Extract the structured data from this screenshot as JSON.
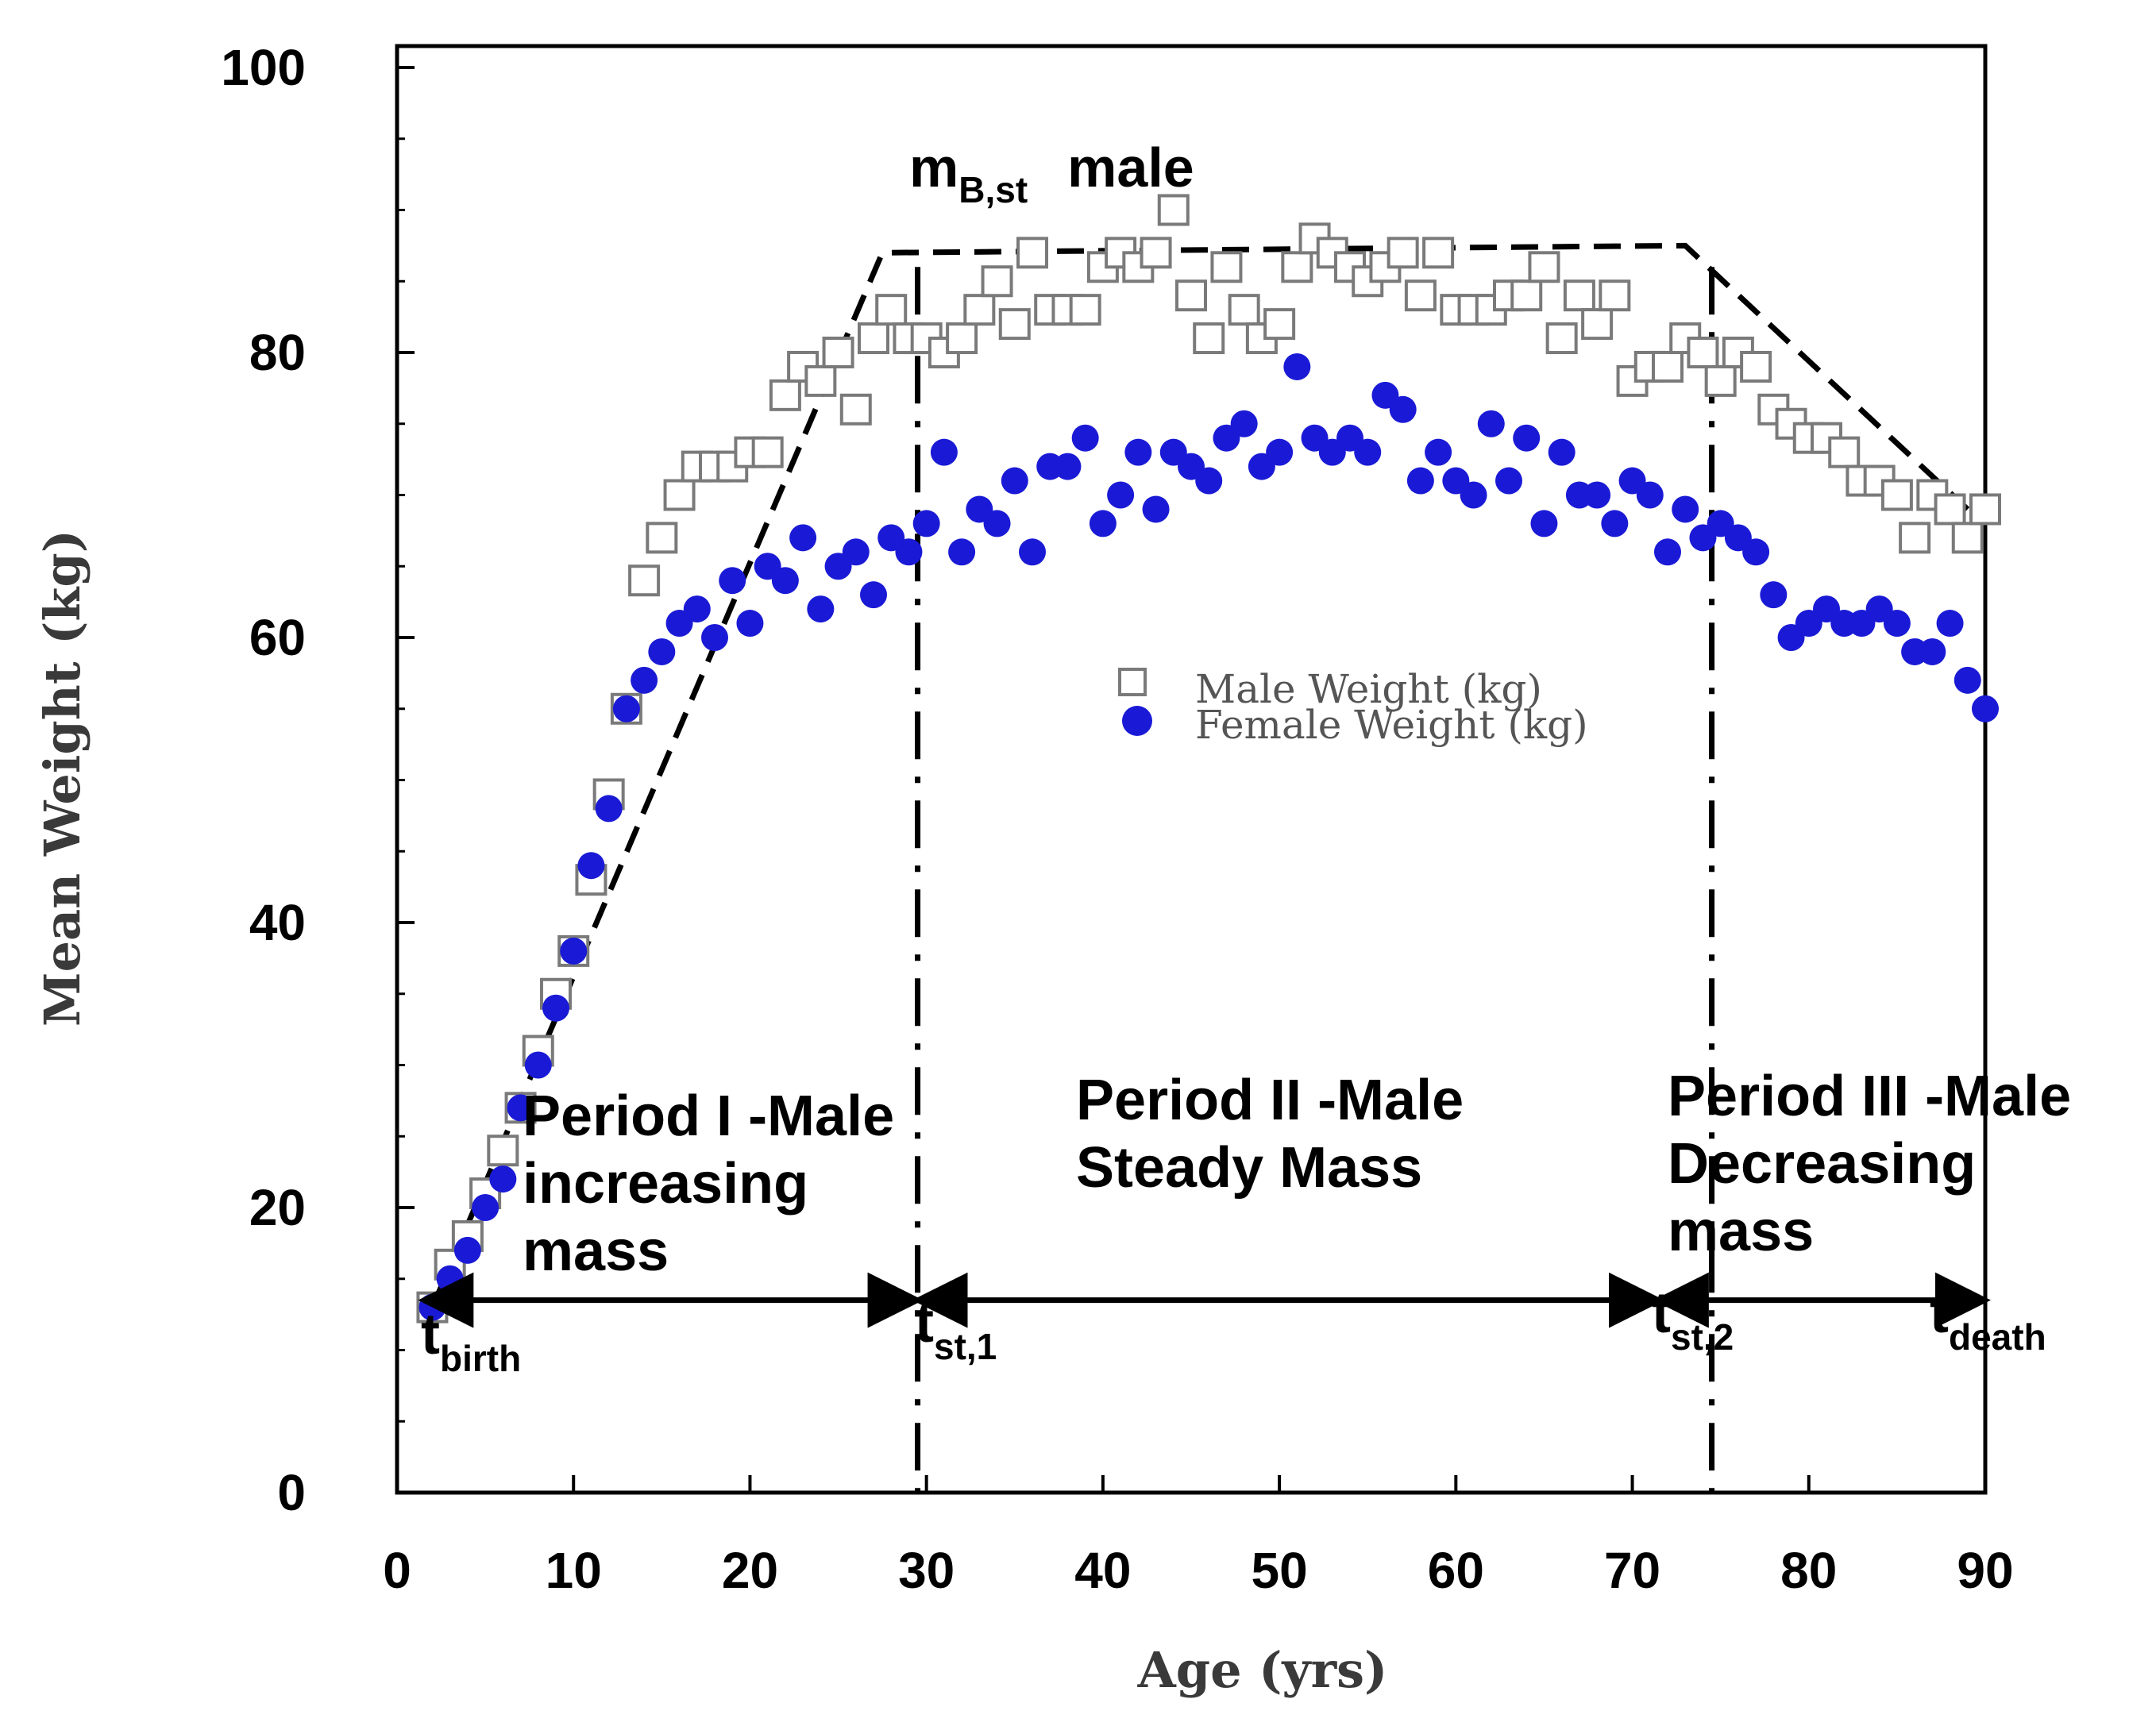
{
  "chart_data": {
    "type": "scatter",
    "title": "",
    "xlabel": "Age (yrs)",
    "ylabel": "Mean Weight (kg)",
    "xlim": [
      0,
      90
    ],
    "ylim": [
      0,
      100
    ],
    "x_ticks": [
      "0",
      "10",
      "20",
      "30",
      "40",
      "50",
      "60",
      "70",
      "80",
      "90"
    ],
    "y_ticks": [
      "0",
      "20",
      "40",
      "60",
      "80",
      "100"
    ],
    "legend": {
      "position": "center",
      "entries": [
        "Male Weight (kg)",
        "Female Weight (kg)"
      ]
    },
    "series": [
      {
        "name": "Male Weight (kg)",
        "marker": "open-square",
        "color": "#7a7a7a",
        "points": [
          [
            2,
            13
          ],
          [
            3,
            16
          ],
          [
            4,
            18
          ],
          [
            5,
            21
          ],
          [
            6,
            24
          ],
          [
            7,
            27
          ],
          [
            8,
            31
          ],
          [
            9,
            35
          ],
          [
            10,
            38
          ],
          [
            11,
            43
          ],
          [
            12,
            49
          ],
          [
            13,
            55
          ],
          [
            14,
            64
          ],
          [
            15,
            67
          ],
          [
            16,
            70
          ],
          [
            17,
            72
          ],
          [
            18,
            72
          ],
          [
            19,
            72
          ],
          [
            20,
            73
          ],
          [
            21,
            73
          ],
          [
            22,
            77
          ],
          [
            23,
            79
          ],
          [
            24,
            78
          ],
          [
            25,
            80
          ],
          [
            26,
            76
          ],
          [
            27,
            81
          ],
          [
            28,
            83
          ],
          [
            29,
            81
          ],
          [
            30,
            81
          ],
          [
            31,
            80
          ],
          [
            32,
            81
          ],
          [
            33,
            83
          ],
          [
            34,
            85
          ],
          [
            35,
            82
          ],
          [
            36,
            87
          ],
          [
            37,
            83
          ],
          [
            38,
            83
          ],
          [
            39,
            83
          ],
          [
            40,
            86
          ],
          [
            41,
            87
          ],
          [
            42,
            86
          ],
          [
            43,
            87
          ],
          [
            44,
            90
          ],
          [
            45,
            84
          ],
          [
            46,
            81
          ],
          [
            47,
            86
          ],
          [
            48,
            83
          ],
          [
            49,
            81
          ],
          [
            50,
            82
          ],
          [
            51,
            86
          ],
          [
            52,
            88
          ],
          [
            53,
            87
          ],
          [
            54,
            86
          ],
          [
            55,
            85
          ],
          [
            56,
            86
          ],
          [
            57,
            87
          ],
          [
            58,
            84
          ],
          [
            59,
            87
          ],
          [
            60,
            83
          ],
          [
            61,
            83
          ],
          [
            62,
            83
          ],
          [
            63,
            84
          ],
          [
            64,
            84
          ],
          [
            65,
            86
          ],
          [
            66,
            81
          ],
          [
            67,
            84
          ],
          [
            68,
            82
          ],
          [
            69,
            84
          ],
          [
            70,
            78
          ],
          [
            71,
            79
          ],
          [
            72,
            79
          ],
          [
            73,
            81
          ],
          [
            74,
            80
          ],
          [
            75,
            78
          ],
          [
            76,
            80
          ],
          [
            77,
            79
          ],
          [
            78,
            76
          ],
          [
            79,
            75
          ],
          [
            80,
            74
          ],
          [
            81,
            74
          ],
          [
            82,
            73
          ],
          [
            83,
            71
          ],
          [
            84,
            71
          ],
          [
            85,
            70
          ],
          [
            86,
            67
          ],
          [
            87,
            70
          ],
          [
            88,
            69
          ],
          [
            89,
            67
          ],
          [
            90,
            69
          ]
        ]
      },
      {
        "name": "Female Weight (kg)",
        "marker": "filled-circle",
        "color": "#1a1ad6",
        "points": [
          [
            2,
            13
          ],
          [
            3,
            15
          ],
          [
            4,
            17
          ],
          [
            5,
            20
          ],
          [
            6,
            22
          ],
          [
            7,
            27
          ],
          [
            8,
            30
          ],
          [
            9,
            34
          ],
          [
            10,
            38
          ],
          [
            11,
            44
          ],
          [
            12,
            48
          ],
          [
            13,
            55
          ],
          [
            14,
            57
          ],
          [
            15,
            59
          ],
          [
            16,
            61
          ],
          [
            17,
            62
          ],
          [
            18,
            60
          ],
          [
            19,
            64
          ],
          [
            20,
            61
          ],
          [
            21,
            65
          ],
          [
            22,
            64
          ],
          [
            23,
            67
          ],
          [
            24,
            62
          ],
          [
            25,
            65
          ],
          [
            26,
            66
          ],
          [
            27,
            63
          ],
          [
            28,
            67
          ],
          [
            29,
            66
          ],
          [
            30,
            68
          ],
          [
            31,
            73
          ],
          [
            32,
            66
          ],
          [
            33,
            69
          ],
          [
            34,
            68
          ],
          [
            35,
            71
          ],
          [
            36,
            66
          ],
          [
            37,
            72
          ],
          [
            38,
            72
          ],
          [
            39,
            74
          ],
          [
            40,
            68
          ],
          [
            41,
            70
          ],
          [
            42,
            73
          ],
          [
            43,
            69
          ],
          [
            44,
            73
          ],
          [
            45,
            72
          ],
          [
            46,
            71
          ],
          [
            47,
            74
          ],
          [
            48,
            75
          ],
          [
            49,
            72
          ],
          [
            50,
            73
          ],
          [
            51,
            79
          ],
          [
            52,
            74
          ],
          [
            53,
            73
          ],
          [
            54,
            74
          ],
          [
            55,
            73
          ],
          [
            56,
            77
          ],
          [
            57,
            76
          ],
          [
            58,
            71
          ],
          [
            59,
            73
          ],
          [
            60,
            71
          ],
          [
            61,
            70
          ],
          [
            62,
            75
          ],
          [
            63,
            71
          ],
          [
            64,
            74
          ],
          [
            65,
            68
          ],
          [
            66,
            73
          ],
          [
            67,
            70
          ],
          [
            68,
            70
          ],
          [
            69,
            68
          ],
          [
            70,
            71
          ],
          [
            71,
            70
          ],
          [
            72,
            66
          ],
          [
            73,
            69
          ],
          [
            74,
            67
          ],
          [
            75,
            68
          ],
          [
            76,
            67
          ],
          [
            77,
            66
          ],
          [
            78,
            63
          ],
          [
            79,
            60
          ],
          [
            80,
            61
          ],
          [
            81,
            62
          ],
          [
            82,
            61
          ],
          [
            83,
            61
          ],
          [
            84,
            62
          ],
          [
            85,
            61
          ],
          [
            86,
            59
          ],
          [
            87,
            59
          ],
          [
            88,
            61
          ],
          [
            89,
            57
          ],
          [
            90,
            55
          ]
        ]
      }
    ],
    "envelope_line": {
      "style": "dashed",
      "points": [
        [
          2,
          13
        ],
        [
          27.5,
          87
        ],
        [
          73,
          87.5
        ],
        [
          89,
          69
        ]
      ]
    },
    "period_dividers": {
      "style": "dash-dot",
      "x": [
        29.5,
        74.5
      ]
    },
    "arrows": {
      "y": 13.5,
      "segments": [
        [
          1.5,
          29.5
        ],
        [
          29.5,
          71.5
        ],
        [
          71.5,
          90
        ]
      ]
    },
    "annotations": {
      "mbst": {
        "main": "m",
        "sub": "B,st",
        "rest": "male"
      },
      "period1": [
        "Period I -Male",
        "increasing",
        "mass"
      ],
      "period2": [
        "Period II -Male",
        "Steady Mass"
      ],
      "period3": [
        "Period III -Male",
        "Decreasing",
        "mass"
      ],
      "times": [
        {
          "id": "birth",
          "main": "t",
          "sub": "birth"
        },
        {
          "id": "st1",
          "main": "t",
          "sub": "st,1"
        },
        {
          "id": "st2",
          "main": "t",
          "sub": "st,2"
        },
        {
          "id": "death",
          "main": "t",
          "sub": "death"
        }
      ]
    }
  }
}
